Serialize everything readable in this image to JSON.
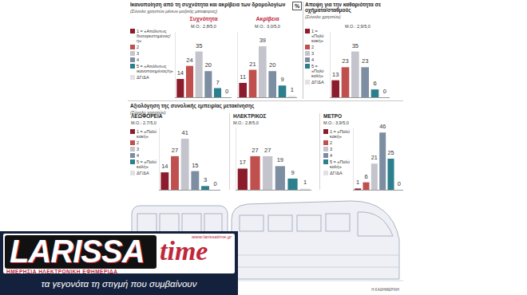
{
  "sections": [
    {
      "title": "Ικανοποίηση από τη συχνότητα και ακρίβεια των δρομολογίων",
      "subtitle": "(Σύνολο χρηστών μέσων μαζικής μεταφοράς)",
      "annotation": "%"
    },
    {
      "title": "Αποψη για την καθαριότητα σε οχήματα/σταθμούς",
      "subtitle": "(Σύνολο χρηστών)"
    },
    {
      "title": "Αξιολόγηση της συνολικής εμπειρίας μετακίνησης",
      "subtitle": "(Σύνολο χρηστών)"
    }
  ],
  "chart_data": [
    {
      "type": "bar",
      "title": "Συχνότητα",
      "subtitle": "Μ.Ο.: 2,8/5,0",
      "categories": [
        "1 = «Απόλυτως δυσαρεστημένος/η»",
        "2",
        "3",
        "4",
        "5 = «Απόλυτως ικανοποιημένος/η»",
        "ΔΓ/ΔΑ"
      ],
      "values": [
        14,
        24,
        35,
        20,
        7,
        0
      ],
      "colors": [
        "#8c1c2c",
        "#c0504d",
        "#c4c4cc",
        "#7d8ea3",
        "#2c7f8c",
        "#e2e2e6"
      ],
      "ylim": [
        0,
        50
      ],
      "yticks": [],
      "data_labels": true,
      "tick_labels": false,
      "legend": "left"
    },
    {
      "type": "bar",
      "title": "Ακρίβεια",
      "subtitle": "Μ.Ο.: 3,0/5,0",
      "categories": [
        "1 = «Απόλυτως δυσαρεστημένος/η»",
        "2",
        "3",
        "4",
        "5 = «Απόλυτως ικανοποιημένος/η»",
        "ΔΓ/ΔΑ"
      ],
      "values": [
        11,
        21,
        39,
        20,
        9,
        1
      ],
      "colors": [
        "#8c1c2c",
        "#c0504d",
        "#c4c4cc",
        "#7d8ea3",
        "#2c7f8c",
        "#e2e2e6"
      ],
      "ylim": [
        0,
        50
      ],
      "yticks": [],
      "data_labels": true,
      "tick_labels": false
    },
    {
      "type": "bar",
      "subtitle": "Μ.Ο.: 2,9/5,0",
      "categories": [
        "1 = «Πολύ κακή»",
        "2",
        "3",
        "4",
        "5 = «Πολύ καλή»",
        "ΔΓ/ΔΑ"
      ],
      "values": [
        13,
        23,
        35,
        23,
        6,
        0
      ],
      "colors": [
        "#8c1c2c",
        "#c0504d",
        "#c4c4cc",
        "#7d8ea3",
        "#2c7f8c",
        "#e2e2e6"
      ],
      "ylim": [
        0,
        50
      ],
      "yticks": [],
      "data_labels": true,
      "tick_labels": false,
      "legend": "left"
    },
    {
      "type": "bar",
      "title": "ΛΕΩΦΟΡΕΙΑ",
      "subtitle": "Μ.Ο.: 2,7/5,0",
      "categories": [
        "1 = «Πολύ κακή»",
        "2",
        "3",
        "4",
        "5 = «Πολύ καλή»",
        "ΔΓ/ΔΑ"
      ],
      "values": [
        14,
        27,
        41,
        15,
        3,
        0
      ],
      "colors": [
        "#8c1c2c",
        "#c0504d",
        "#c4c4cc",
        "#7d8ea3",
        "#2c7f8c",
        "#e2e2e6"
      ],
      "ylim": [
        0,
        50
      ],
      "yticks": [],
      "data_labels": true,
      "tick_labels": false,
      "legend": "left"
    },
    {
      "type": "bar",
      "title": "ΗΛΕΚΤΡΙΚΟΣ",
      "subtitle": "Μ.Ο.: 2,8/5,0",
      "categories": [
        "1 = «Πολύ κακή»",
        "2",
        "3",
        "4",
        "5 = «Πολύ καλή»",
        "ΔΓ/ΔΑ"
      ],
      "values": [
        17,
        27,
        27,
        19,
        9,
        1
      ],
      "colors": [
        "#8c1c2c",
        "#c0504d",
        "#c4c4cc",
        "#7d8ea3",
        "#2c7f8c",
        "#e2e2e6"
      ],
      "ylim": [
        0,
        50
      ],
      "yticks": [],
      "data_labels": true,
      "tick_labels": false
    },
    {
      "type": "bar",
      "title": "ΜΕΤΡΟ",
      "subtitle": "Μ.Ο.: 3,9/5,0",
      "categories": [
        "1 = «Πολύ κακή»",
        "2",
        "3",
        "4",
        "5 = «Πολύ καλή»",
        "ΔΓ/ΔΑ"
      ],
      "values": [
        1,
        6,
        21,
        46,
        25,
        0
      ],
      "colors": [
        "#8c1c2c",
        "#c0504d",
        "#c4c4cc",
        "#7d8ea3",
        "#2c7f8c",
        "#e2e2e6"
      ],
      "ylim": [
        0,
        50
      ],
      "yticks": [],
      "data_labels": true,
      "tick_labels": false,
      "legend": "left"
    }
  ],
  "credit": "Η ΚΑΘΗΜΕΡΙΝΗ",
  "logo": {
    "name_left": "LARISSA",
    "name_right": "time",
    "url": "www.larissatime.gr",
    "tagline": "ΗΜΕΡΗΣΙΑ ΗΛΕΚΤΡΟΝΙΚΗ ΕΦΗΜΕΡΙΔΑ",
    "slogan": "τα γεγονότα τη στιγμή που συμβαίνουν"
  }
}
